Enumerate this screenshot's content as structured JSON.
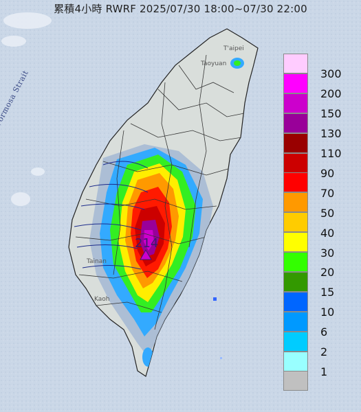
{
  "title": "累積4小時 RWRF 2025/07/30 18:00~07/30 22:00",
  "strait_label": "Formosa Strait",
  "places": {
    "taipei": "T'aipei",
    "taoyuan": "Taoyuan",
    "tainan": "Tainan",
    "kaohsiung": "Kaoh"
  },
  "max_value": "214",
  "legend": [
    {
      "label": "300",
      "color": "#ffccff"
    },
    {
      "label": "200",
      "color": "#ff00ff"
    },
    {
      "label": "150",
      "color": "#cc00cc"
    },
    {
      "label": "130",
      "color": "#990099"
    },
    {
      "label": "110",
      "color": "#990000"
    },
    {
      "label": "90",
      "color": "#cc0000"
    },
    {
      "label": "70",
      "color": "#ff0000"
    },
    {
      "label": "50",
      "color": "#ff9900"
    },
    {
      "label": "40",
      "color": "#ffcc00"
    },
    {
      "label": "30",
      "color": "#ffff00"
    },
    {
      "label": "20",
      "color": "#33ff00"
    },
    {
      "label": "15",
      "color": "#339900"
    },
    {
      "label": "10",
      "color": "#0066ff"
    },
    {
      "label": "6",
      "color": "#0099ff"
    },
    {
      "label": "2",
      "color": "#00ccff"
    },
    {
      "label": "1",
      "color": "#99ffff"
    },
    {
      "label": "",
      "color": "#c0c0c0"
    }
  ],
  "colors": {
    "ocean": "#c9d6e6",
    "land": "#d9dedb"
  }
}
